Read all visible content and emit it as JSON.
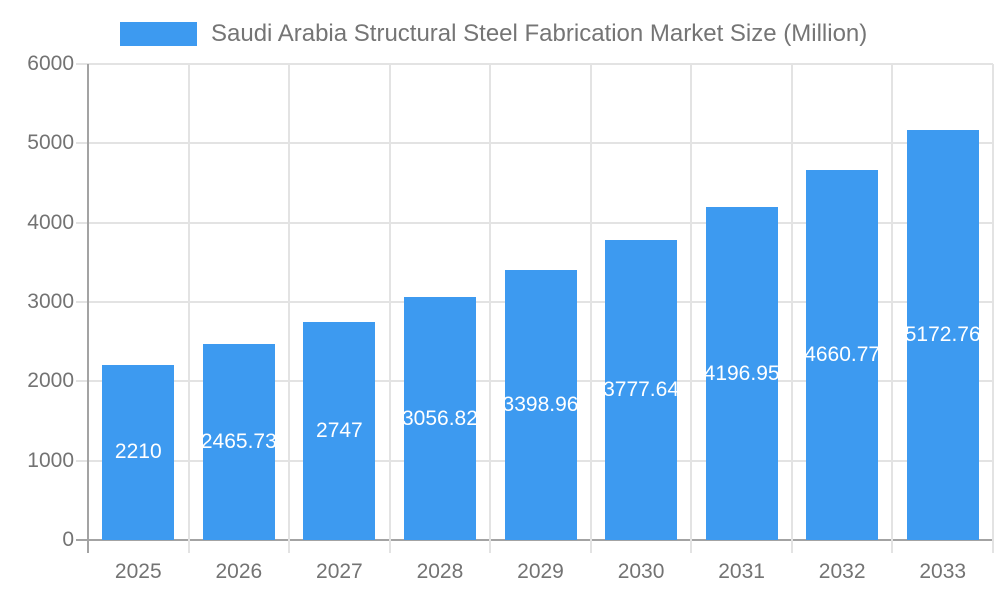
{
  "legend": {
    "label": "Saudi Arabia Structural Steel Fabrication Market Size (Million)"
  },
  "chart_data": {
    "type": "bar",
    "title": "Saudi Arabia Structural Steel Fabrication Market Size (Million)",
    "categories": [
      "2025",
      "2026",
      "2027",
      "2028",
      "2029",
      "2030",
      "2031",
      "2032",
      "2033"
    ],
    "values": [
      2210,
      2465.73,
      2747,
      3056.82,
      3398.96,
      3777.64,
      4196.95,
      4660.77,
      5172.76
    ],
    "value_labels": [
      "2210",
      "2465.73",
      "2747",
      "3056.82",
      "3398.96",
      "3777.64",
      "4196.95",
      "4660.77",
      "5172.76"
    ],
    "xlabel": "",
    "ylabel": "",
    "ylim": [
      0,
      6000
    ],
    "yticks": [
      0,
      1000,
      2000,
      3000,
      4000,
      5000,
      6000
    ],
    "grid": true,
    "legend_position": "top",
    "series_name": "Saudi Arabia Structural Steel Fabrication Market Size (Million)"
  },
  "colors": {
    "bar": "#3d9af0",
    "bar_value_text": "#ffffff",
    "gridline": "#e3e3e3",
    "zero_line": "#a3a3a3",
    "tick_text": "#737373",
    "legend_text": "#757575"
  }
}
